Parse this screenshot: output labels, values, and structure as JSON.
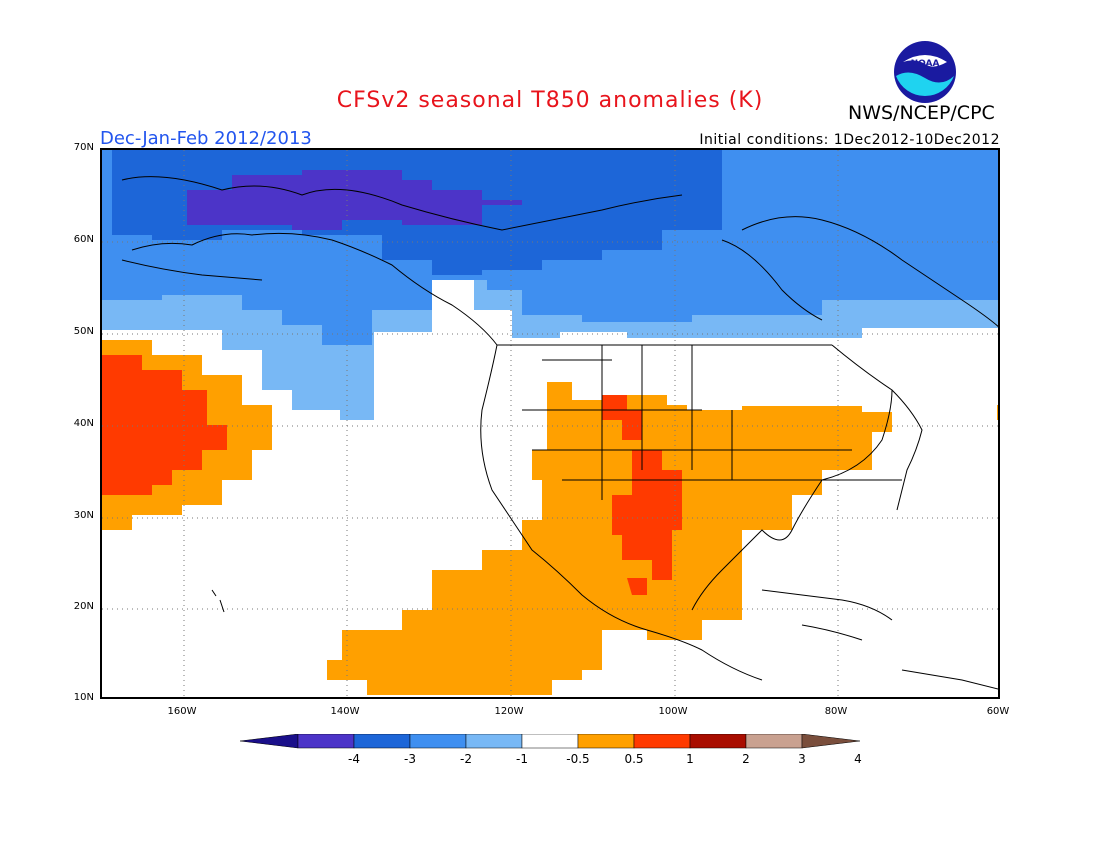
{
  "title": "CFSv2 seasonal T850 anomalies (K)",
  "org": "NWS/NCEP/CPC",
  "logo_text": "NOAA",
  "season": "Dec-Jan-Feb 2012/2013",
  "initial_conditions": "Initial conditions: 1Dec2012-10Dec2012",
  "lat_labels": [
    "70N",
    "60N",
    "50N",
    "40N",
    "30N",
    "20N",
    "10N"
  ],
  "lon_labels": [
    "160W",
    "140W",
    "120W",
    "100W",
    "80W",
    "60W"
  ],
  "colorbar": {
    "labels": [
      "-4",
      "-3",
      "-2",
      "-1",
      "-0.5",
      "0.5",
      "1",
      "2",
      "3",
      "4"
    ],
    "colors": [
      "#1a0f8a",
      "#4c34c8",
      "#1d66d8",
      "#3f8ff0",
      "#78b8f5",
      "#ffffff",
      "#ffa000",
      "#ff3a00",
      "#a90d00",
      "#c9a190",
      "#7a4e3c"
    ]
  }
}
